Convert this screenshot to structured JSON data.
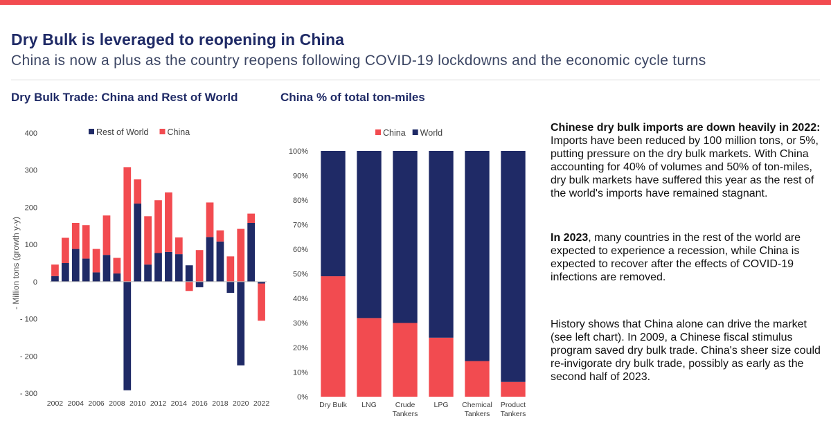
{
  "header": {
    "title": "Dry Bulk is leveraged to reopening in China",
    "subtitle": "China is now a plus as the country reopens following COVID-19 lockdowns and the economic cycle turns"
  },
  "colors": {
    "navy": "#1f2a66",
    "red": "#f24b50"
  },
  "chart_data": [
    {
      "type": "bar",
      "stacked": true,
      "title": "Dry Bulk Trade: China and Rest of World",
      "ylabel": "- Million tons (growth y-y)",
      "xlabel": "",
      "ylim": [
        -300,
        400
      ],
      "yticks": [
        400,
        300,
        200,
        100,
        0,
        -100,
        -200,
        -300
      ],
      "ytick_labels": [
        "400",
        "300",
        "200",
        "100",
        "0",
        "- 100",
        "- 200",
        "- 300"
      ],
      "x": [
        2002,
        2003,
        2004,
        2005,
        2006,
        2007,
        2008,
        2009,
        2010,
        2011,
        2012,
        2013,
        2014,
        2015,
        2016,
        2017,
        2018,
        2019,
        2020,
        2021,
        2022
      ],
      "xtick_labels": [
        "2002",
        "2004",
        "2006",
        "2008",
        "2010",
        "2012",
        "2014",
        "2016",
        "2018",
        "2020",
        "2022"
      ],
      "legend": [
        "Rest of World",
        "China"
      ],
      "legend_position": "top",
      "series": [
        {
          "name": "Rest of World",
          "color": "#1f2a66",
          "values": [
            15,
            50,
            88,
            62,
            25,
            72,
            22,
            -292,
            210,
            46,
            77,
            80,
            74,
            44,
            -15,
            120,
            108,
            -30,
            -225,
            158,
            -5
          ]
        },
        {
          "name": "China",
          "color": "#f24b50",
          "values": [
            31,
            68,
            70,
            90,
            63,
            106,
            42,
            308,
            65,
            130,
            142,
            160,
            45,
            -25,
            85,
            93,
            30,
            68,
            142,
            25,
            -100
          ]
        }
      ]
    },
    {
      "type": "bar",
      "stacked": true,
      "title": "China % of total ton-miles",
      "ylim": [
        0,
        100
      ],
      "ytick_labels": [
        "0%",
        "10%",
        "20%",
        "30%",
        "40%",
        "50%",
        "60%",
        "70%",
        "80%",
        "90%",
        "100%"
      ],
      "categories": [
        "Dry Bulk",
        "LNG",
        "Crude Tankers",
        "LPG",
        "Chemical Tankers",
        "Product Tankers"
      ],
      "category_lines": [
        [
          "Dry Bulk"
        ],
        [
          "LNG"
        ],
        [
          "Crude",
          "Tankers"
        ],
        [
          "LPG"
        ],
        [
          "Chemical",
          "Tankers"
        ],
        [
          "Product",
          "Tankers"
        ]
      ],
      "legend": [
        "China",
        "World"
      ],
      "legend_position": "top",
      "series": [
        {
          "name": "China",
          "color": "#f24b50",
          "values": [
            49,
            32,
            30,
            24,
            14.5,
            6
          ]
        },
        {
          "name": "World",
          "color": "#1f2a66",
          "values": [
            51,
            68,
            70,
            76,
            85.5,
            94
          ]
        }
      ]
    }
  ],
  "commentary": {
    "p1_bold": "Chinese dry bulk imports are down heavily in 2022:",
    "p1_text": " Imports have been reduced by 100 million tons, or 5%, putting pressure on the dry bulk markets. With China accounting for 40% of volumes and 50% of ton-miles, dry bulk markets have suffered this year as the rest of the world's imports have remained stagnant.",
    "p2_bold": "In 2023",
    "p2_text": ", many countries in the rest of the world are expected to experience a recession, while China is expected to recover after the effects of COVID-19 infections are removed.",
    "p3_text": "History shows that China alone can drive the market (see left chart). In 2009, a Chinese fiscal stimulus program saved dry bulk trade. China's sheer size could re-invigorate dry bulk trade, possibly as early as the second half of 2023."
  }
}
